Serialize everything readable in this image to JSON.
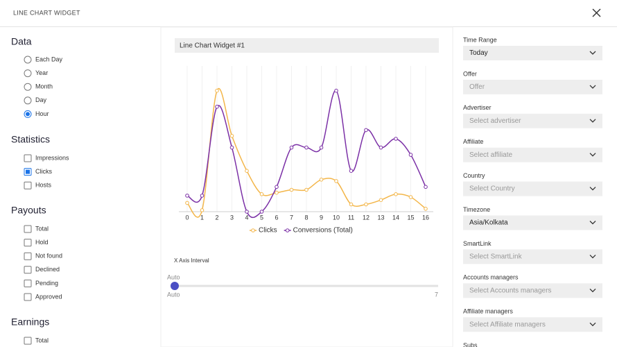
{
  "header": {
    "title": "LINE CHART WIDGET"
  },
  "left_panel": {
    "sections": [
      {
        "title": "Data",
        "control": "radio",
        "options": [
          {
            "label": "Each Day",
            "checked": false
          },
          {
            "label": "Year",
            "checked": false
          },
          {
            "label": "Month",
            "checked": false
          },
          {
            "label": "Day",
            "checked": false
          },
          {
            "label": "Hour",
            "checked": true
          }
        ]
      },
      {
        "title": "Statistics",
        "control": "checkbox",
        "options": [
          {
            "label": "Impressions",
            "checked": false
          },
          {
            "label": "Clicks",
            "checked": true
          },
          {
            "label": "Hosts",
            "checked": false
          }
        ]
      },
      {
        "title": "Payouts",
        "control": "checkbox",
        "options": [
          {
            "label": "Total",
            "checked": false
          },
          {
            "label": "Hold",
            "checked": false
          },
          {
            "label": "Not found",
            "checked": false
          },
          {
            "label": "Declined",
            "checked": false
          },
          {
            "label": "Pending",
            "checked": false
          },
          {
            "label": "Approved",
            "checked": false
          }
        ]
      },
      {
        "title": "Earnings",
        "control": "checkbox",
        "options": [
          {
            "label": "Total",
            "checked": false
          }
        ]
      }
    ]
  },
  "widget": {
    "name": "Line Chart Widget #1",
    "interval_label": "X Axis Interval",
    "slider_top": "Auto",
    "slider_min": "Auto",
    "slider_max": "7"
  },
  "chart_data": {
    "type": "line",
    "x": [
      0,
      1,
      2,
      3,
      4,
      5,
      6,
      7,
      8,
      9,
      10,
      11,
      12,
      13,
      14,
      15,
      16
    ],
    "xlim": [
      0,
      16
    ],
    "xticks": [
      0,
      1,
      2,
      3,
      4,
      5,
      6,
      7,
      8,
      9,
      10,
      11,
      12,
      13,
      14,
      15,
      16
    ],
    "ylim": [
      0,
      100
    ],
    "grid": true,
    "legend": "bottom",
    "series": [
      {
        "name": "Clicks",
        "color": "#f3b64a",
        "values": [
          6,
          1,
          83,
          52,
          28,
          12,
          13,
          15,
          15,
          22,
          21,
          5,
          5,
          8,
          12,
          10,
          2
        ]
      },
      {
        "name": "Conversions (Total)",
        "color": "#7b30a6",
        "values": [
          11,
          11,
          72,
          44,
          0,
          0,
          17,
          44,
          44,
          44,
          83,
          28,
          56,
          44,
          50,
          39,
          17
        ]
      }
    ]
  },
  "right_panel": {
    "filters": [
      {
        "label": "Time Range",
        "value": "Today"
      },
      {
        "label": "Offer",
        "placeholder": "Offer"
      },
      {
        "label": "Advertiser",
        "placeholder": "Select advertiser"
      },
      {
        "label": "Affiliate",
        "placeholder": "Select affiliate"
      },
      {
        "label": "Country",
        "placeholder": "Select Country"
      },
      {
        "label": "Timezone",
        "value": "Asia/Kolkata"
      },
      {
        "label": "SmartLink",
        "placeholder": "Select SmartLink"
      },
      {
        "label": "Accounts managers",
        "placeholder": "Select Accounts managers"
      },
      {
        "label": "Affiliate managers",
        "placeholder": "Select Affiliate managers"
      },
      {
        "label": "Subs"
      }
    ]
  }
}
